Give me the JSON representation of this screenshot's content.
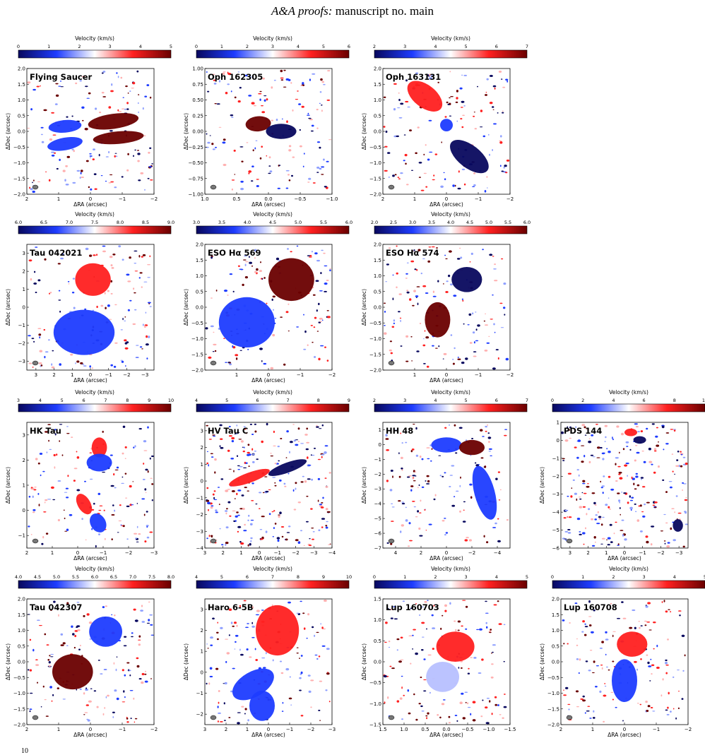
{
  "header": {
    "journal": "A&A proofs:",
    "rest": "manuscript no. main"
  },
  "page_number": "10",
  "colorbar_label": "Velocity (km/s)",
  "axis_labels": {
    "x": "ΔRA (arcsec)",
    "y": "ΔDec (arcsec)"
  },
  "colors": {
    "low": "#08085e",
    "mid_low": "#1e3cff",
    "center": "#ffffff",
    "mid_high": "#ff2020",
    "high": "#6a0000"
  },
  "chart_data": [
    {
      "type": "heatmap",
      "title": "Flying Saucer",
      "cbar_ticks": [
        "0",
        "1",
        "2",
        "3",
        "4",
        "5"
      ],
      "cbar_range": [
        0,
        5
      ],
      "x_ticks": [
        "2",
        "1",
        "0",
        "−1",
        "−2"
      ],
      "x_range": [
        2,
        -2
      ],
      "y_ticks": [
        "−2.0",
        "−1.5",
        "−1.0",
        "−0.5",
        "0.0",
        "0.5",
        "1.0",
        "1.5",
        "2.0"
      ],
      "y_range": [
        -2,
        2
      ]
    },
    {
      "type": "heatmap",
      "title": "Oph 162305",
      "cbar_ticks": [
        "0",
        "1",
        "2",
        "3",
        "4",
        "5",
        "6"
      ],
      "cbar_range": [
        0,
        6
      ],
      "x_ticks": [
        "1.0",
        "0.5",
        "0.0",
        "−0.5",
        "−1.0"
      ],
      "x_range": [
        1,
        -1
      ],
      "y_ticks": [
        "−1.00",
        "−0.75",
        "−0.50",
        "−0.25",
        "0.00",
        "0.25",
        "0.50",
        "0.75",
        "1.00"
      ],
      "y_range": [
        -1,
        1
      ]
    },
    {
      "type": "heatmap",
      "title": "Oph 163131",
      "cbar_ticks": [
        "2",
        "3",
        "4",
        "5",
        "6",
        "7"
      ],
      "cbar_range": [
        2,
        7
      ],
      "x_ticks": [
        "2",
        "1",
        "0",
        "−1",
        "−2"
      ],
      "x_range": [
        2,
        -2
      ],
      "y_ticks": [
        "−2.0",
        "−1.5",
        "−1.0",
        "−0.5",
        "0.0",
        "0.5",
        "1.0",
        "1.5",
        "2.0"
      ],
      "y_range": [
        -2,
        2
      ]
    },
    {
      "type": "heatmap",
      "title": "Tau 042021",
      "cbar_ticks": [
        "6.0",
        "6.5",
        "7.0",
        "7.5",
        "8.0",
        "8.5",
        "9.0"
      ],
      "cbar_range": [
        6,
        9
      ],
      "x_ticks": [
        "3",
        "2",
        "1",
        "0",
        "−1",
        "−2",
        "−3"
      ],
      "x_range": [
        3.5,
        -3.5
      ],
      "y_ticks": [
        "−3",
        "−2",
        "−1",
        "0",
        "1",
        "2",
        "3"
      ],
      "y_range": [
        -3.5,
        3.5
      ]
    },
    {
      "type": "heatmap",
      "title": "ESO Hα 569",
      "cbar_ticks": [
        "3.0",
        "3.5",
        "4.0",
        "4.5",
        "5.0",
        "5.5",
        "6.0"
      ],
      "cbar_range": [
        3,
        6
      ],
      "x_ticks": [
        "1",
        "0",
        "−1",
        "−2"
      ],
      "x_range": [
        2,
        -2
      ],
      "y_ticks": [
        "−2.0",
        "−1.5",
        "−1.0",
        "−0.5",
        "0.0",
        "0.5",
        "1.0",
        "1.5",
        "2.0"
      ],
      "y_range": [
        -2,
        2
      ]
    },
    {
      "type": "heatmap",
      "title": "ESO Hα 574",
      "cbar_ticks": [
        "2.0",
        "2.5",
        "3.0",
        "3.5",
        "4.0",
        "4.5",
        "5.0",
        "5.5",
        "6.0"
      ],
      "cbar_range": [
        2,
        6
      ],
      "x_ticks": [
        "1",
        "0",
        "−1",
        "−2"
      ],
      "x_range": [
        2,
        -2
      ],
      "y_ticks": [
        "−2.0",
        "−1.5",
        "−1.0",
        "−0.5",
        "0.0",
        "0.5",
        "1.0",
        "1.5",
        "2.0"
      ],
      "y_range": [
        -2,
        2
      ]
    },
    {
      "type": "heatmap",
      "title": "HK Tau",
      "cbar_ticks": [
        "3",
        "4",
        "5",
        "6",
        "7",
        "8",
        "9",
        "10"
      ],
      "cbar_range": [
        3,
        10
      ],
      "x_ticks": [
        "2",
        "1",
        "0",
        "−1",
        "−2",
        "−3"
      ],
      "x_range": [
        2,
        -3
      ],
      "y_ticks": [
        "−1",
        "0",
        "1",
        "2",
        "3"
      ],
      "y_range": [
        -1.5,
        3.5
      ]
    },
    {
      "type": "heatmap",
      "title": "HV Tau C",
      "cbar_ticks": [
        "4",
        "5",
        "6",
        "7",
        "8",
        "9"
      ],
      "cbar_range": [
        4,
        9
      ],
      "x_ticks": [
        "3",
        "2",
        "1",
        "0",
        "−1",
        "−2",
        "−3",
        "−4"
      ],
      "x_range": [
        3,
        -4
      ],
      "y_ticks": [
        "−4",
        "−3",
        "−2",
        "−1",
        "0",
        "1",
        "2",
        "3"
      ],
      "y_range": [
        -4,
        3.5
      ]
    },
    {
      "type": "heatmap",
      "title": "HH 48",
      "cbar_ticks": [
        "2",
        "3",
        "4",
        "5",
        "6",
        "7"
      ],
      "cbar_range": [
        2,
        7
      ],
      "x_ticks": [
        "4",
        "2",
        "0",
        "−2",
        "−4"
      ],
      "x_range": [
        5,
        -5
      ],
      "y_ticks": [
        "−7",
        "−6",
        "−5",
        "−4",
        "−3",
        "−2",
        "−1",
        "0",
        "1"
      ],
      "y_range": [
        -7,
        1.5
      ]
    },
    {
      "type": "heatmap",
      "title": "PDS 144",
      "cbar_ticks": [
        "0",
        "2",
        "4",
        "6",
        "8",
        "10"
      ],
      "cbar_range": [
        0,
        10
      ],
      "x_ticks": [
        "3",
        "2",
        "1",
        "0",
        "−1",
        "−2",
        "−3"
      ],
      "x_range": [
        3.5,
        -3.5
      ],
      "y_ticks": [
        "−6",
        "−5",
        "−4",
        "−3",
        "−2",
        "−1",
        "0",
        "1"
      ],
      "y_range": [
        -6,
        1
      ]
    },
    {
      "type": "heatmap",
      "title": "Tau 042307",
      "cbar_ticks": [
        "4.0",
        "4.5",
        "5.0",
        "5.5",
        "6.0",
        "6.5",
        "7.0",
        "7.5",
        "8.0"
      ],
      "cbar_range": [
        4,
        8
      ],
      "x_ticks": [
        "2",
        "1",
        "0",
        "−1",
        "−2"
      ],
      "x_range": [
        2,
        -2
      ],
      "y_ticks": [
        "−2.0",
        "−1.5",
        "−1.0",
        "−0.5",
        "0.0",
        "0.5",
        "1.0",
        "1.5",
        "2.0"
      ],
      "y_range": [
        -2,
        2
      ]
    },
    {
      "type": "heatmap",
      "title": "Haro 6-5B",
      "cbar_ticks": [
        "4",
        "5",
        "6",
        "7",
        "8",
        "9",
        "10"
      ],
      "cbar_range": [
        4,
        10
      ],
      "x_ticks": [
        "3",
        "2",
        "1",
        "0",
        "−1",
        "−2",
        "−3"
      ],
      "x_range": [
        3,
        -3
      ],
      "y_ticks": [
        "−2",
        "−1",
        "0",
        "1",
        "2",
        "3"
      ],
      "y_range": [
        -2.5,
        3.5
      ]
    },
    {
      "type": "heatmap",
      "title": "Lup 160703",
      "cbar_ticks": [
        "0",
        "1",
        "2",
        "3",
        "4",
        "5"
      ],
      "cbar_range": [
        0,
        5
      ],
      "x_ticks": [
        "1.5",
        "1.0",
        "0.5",
        "0.0",
        "−0.5",
        "−1.0",
        "−1.5"
      ],
      "x_range": [
        1.5,
        -1.5
      ],
      "y_ticks": [
        "−1.5",
        "−1.0",
        "−0.5",
        "0.0",
        "0.5",
        "1.0",
        "1.5"
      ],
      "y_range": [
        -1.5,
        1.5
      ]
    },
    {
      "type": "heatmap",
      "title": "Lup 160708",
      "cbar_ticks": [
        "0",
        "1",
        "2",
        "3",
        "4",
        "5"
      ],
      "cbar_range": [
        0,
        5
      ],
      "x_ticks": [
        "2",
        "1",
        "0",
        "−1",
        "−2"
      ],
      "x_range": [
        2,
        -2
      ],
      "y_ticks": [
        "−2.0",
        "−1.5",
        "−1.0",
        "−0.5",
        "0.0",
        "0.5",
        "1.0",
        "1.5",
        "2.0"
      ],
      "y_range": [
        -2,
        2
      ]
    }
  ]
}
